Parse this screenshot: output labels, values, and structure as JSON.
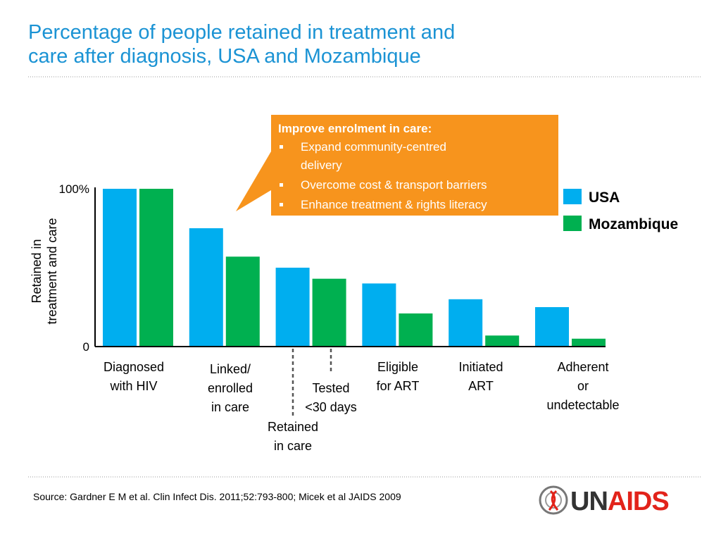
{
  "chart_data": {
    "type": "bar",
    "title": "Percentage of people retained in treatment and\ncare after diagnosis, USA and Mozambique",
    "y_label": "Retained in\ntreatment and care",
    "categories": [
      "Diagnosed\nwith HIV",
      "Linked/\nenrolled\nin care",
      "Retained\nin care",
      "Eligible\nfor ART",
      "Initiated\nART",
      "Adherent\nor\nundetectable"
    ],
    "series": [
      {
        "name": "USA",
        "color": "#00aeef",
        "values": [
          100,
          75,
          50,
          40,
          30,
          25
        ]
      },
      {
        "name": "Mozambique",
        "color": "#00b050",
        "values": [
          100,
          57,
          43,
          21,
          7,
          5
        ]
      }
    ],
    "ylim": [
      0,
      100
    ],
    "yticks": [
      0,
      {
        "value": 100,
        "label": "100%"
      }
    ],
    "annotation": "Tested\n<30 days",
    "callout": {
      "title": "Improve enrolment in care:",
      "bullets": [
        "Expand community-centred\ndelivery",
        "Overcome cost & transport barriers",
        "Enhance treatment & rights literacy"
      ]
    },
    "source": "Source: Gardner E M et al. Clin Infect Dis. 2011;52:793-800; Micek et al JAIDS 2009",
    "logo": [
      "UN",
      "AIDS"
    ]
  }
}
